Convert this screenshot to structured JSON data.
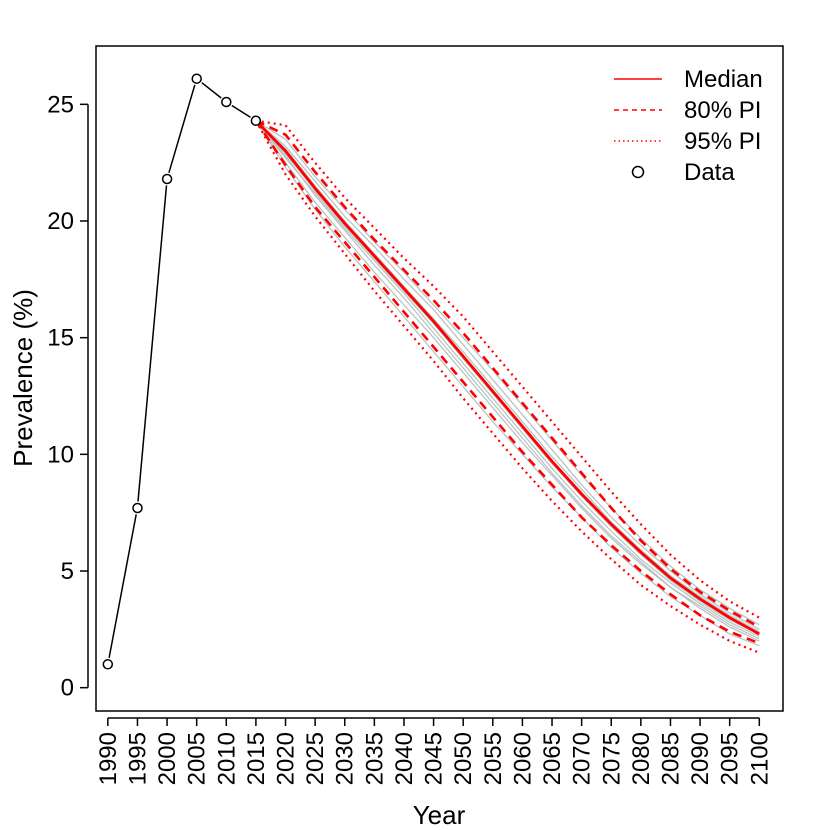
{
  "chart_data": {
    "type": "line",
    "xlabel": "Year",
    "ylabel": "Prevalence (%)",
    "xlim": [
      1988,
      2104
    ],
    "ylim": [
      -1,
      27.5
    ],
    "x_ticks": [
      1990,
      1995,
      2000,
      2005,
      2010,
      2015,
      2020,
      2025,
      2030,
      2035,
      2040,
      2045,
      2050,
      2055,
      2060,
      2065,
      2070,
      2075,
      2080,
      2085,
      2090,
      2095,
      2100
    ],
    "y_ticks": [
      0,
      5,
      10,
      15,
      20,
      25
    ],
    "data": {
      "name": "Data",
      "x": [
        1990,
        1995,
        2000,
        2005,
        2010,
        2015
      ],
      "y": [
        1.0,
        7.7,
        21.8,
        26.1,
        25.1,
        24.3
      ]
    },
    "projection_x": [
      2015,
      2020,
      2025,
      2030,
      2035,
      2040,
      2045,
      2050,
      2055,
      2060,
      2065,
      2070,
      2075,
      2080,
      2085,
      2090,
      2095,
      2100
    ],
    "median": [
      24.3,
      23.0,
      21.4,
      19.9,
      18.5,
      17.1,
      15.7,
      14.2,
      12.7,
      11.2,
      9.7,
      8.3,
      7.0,
      5.8,
      4.7,
      3.8,
      3.0,
      2.3
    ],
    "pi80_upper": [
      24.3,
      23.7,
      22.1,
      20.6,
      19.2,
      17.9,
      16.6,
      15.2,
      13.7,
      12.2,
      10.7,
      9.2,
      7.7,
      6.3,
      5.1,
      4.1,
      3.3,
      2.6
    ],
    "pi80_lower": [
      24.3,
      22.4,
      20.6,
      19.1,
      17.6,
      16.1,
      14.6,
      13.1,
      11.6,
      10.1,
      8.7,
      7.3,
      6.1,
      5.0,
      4.0,
      3.1,
      2.4,
      1.9
    ],
    "pi95_upper": [
      24.3,
      24.1,
      22.5,
      21.0,
      19.7,
      18.4,
      17.2,
      15.9,
      14.4,
      12.9,
      11.4,
      9.9,
      8.4,
      7.0,
      5.7,
      4.6,
      3.7,
      3.0
    ],
    "pi95_lower": [
      24.3,
      22.0,
      20.2,
      18.6,
      17.0,
      15.5,
      14.0,
      12.4,
      10.9,
      9.4,
      8.0,
      6.7,
      5.5,
      4.4,
      3.5,
      2.7,
      2.0,
      1.5
    ],
    "trajectories": [
      [
        24.3,
        22.7,
        21.2,
        19.7,
        18.3,
        16.9,
        15.4,
        13.9,
        12.4,
        10.9,
        9.4,
        8.0,
        6.7,
        5.5,
        4.5,
        3.6,
        2.8,
        2.2
      ],
      [
        24.3,
        23.2,
        21.7,
        20.2,
        18.9,
        17.5,
        16.2,
        14.7,
        13.2,
        11.7,
        10.2,
        8.7,
        7.3,
        6.1,
        5.0,
        4.0,
        3.2,
        2.5
      ],
      [
        24.3,
        22.5,
        20.8,
        19.3,
        17.8,
        16.4,
        15.0,
        13.5,
        12.0,
        10.5,
        9.1,
        7.7,
        6.4,
        5.3,
        4.3,
        3.4,
        2.6,
        2.0
      ],
      [
        24.3,
        23.5,
        21.9,
        20.5,
        19.1,
        17.8,
        16.4,
        15.0,
        13.6,
        12.1,
        10.6,
        9.1,
        7.7,
        6.4,
        5.2,
        4.2,
        3.4,
        2.7
      ],
      [
        24.3,
        22.9,
        21.3,
        19.8,
        18.4,
        17.0,
        15.6,
        14.1,
        12.6,
        11.1,
        9.6,
        8.2,
        6.9,
        5.7,
        4.6,
        3.7,
        2.9,
        2.3
      ],
      [
        24.3,
        22.3,
        20.5,
        18.9,
        17.4,
        15.9,
        14.4,
        12.9,
        11.4,
        10.0,
        8.6,
        7.3,
        6.0,
        4.9,
        3.9,
        3.1,
        2.3,
        1.8
      ],
      [
        24.3,
        23.1,
        21.5,
        20.0,
        18.6,
        17.2,
        15.8,
        14.4,
        12.9,
        11.4,
        9.9,
        8.5,
        7.1,
        5.9,
        4.8,
        3.9,
        3.1,
        2.4
      ],
      [
        24.3,
        22.8,
        21.1,
        19.6,
        18.1,
        16.7,
        15.2,
        13.7,
        12.2,
        10.7,
        9.2,
        7.8,
        6.5,
        5.4,
        4.3,
        3.5,
        2.7,
        2.1
      ]
    ],
    "legend": {
      "position": "top-right",
      "entries": [
        {
          "label": "Median",
          "style": "solid"
        },
        {
          "label": "80% PI",
          "style": "dashed"
        },
        {
          "label": "95% PI",
          "style": "dotted"
        },
        {
          "label": "Data",
          "style": "circle"
        }
      ]
    },
    "colors": {
      "interval": "#ff0000",
      "trajectory": "#b8c4c4",
      "data": "#000000",
      "axis": "#000000"
    }
  }
}
